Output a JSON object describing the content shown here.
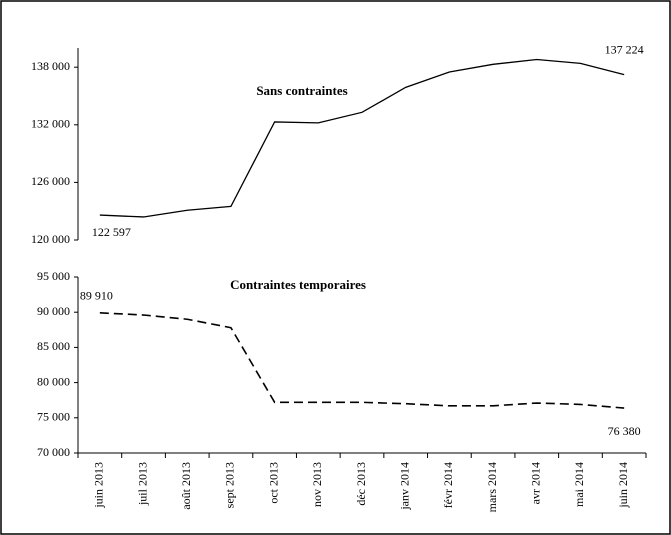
{
  "chart_data": [
    {
      "type": "line",
      "series": [
        {
          "name": "Sans contraintes",
          "color": "#000000",
          "style": "solid",
          "values": [
            122597,
            122400,
            123100,
            123500,
            132300,
            132200,
            133300,
            135900,
            137500,
            138300,
            138800,
            138400,
            137224
          ],
          "value_labels": [
            "122 597",
            null,
            null,
            null,
            null,
            null,
            null,
            null,
            null,
            null,
            null,
            null,
            "137 224"
          ]
        }
      ],
      "ylim": [
        120000,
        140000
      ],
      "yticks": [
        {
          "value": 120000,
          "label": "120 000"
        },
        {
          "value": 126000,
          "label": "126 000"
        },
        {
          "value": 132000,
          "label": "132 000"
        },
        {
          "value": 138000,
          "label": "138 000"
        }
      ]
    },
    {
      "type": "line",
      "categories": [
        "juin 2013",
        "juil 2013",
        "août 2013",
        "sept 2013",
        "oct 2013",
        "nov 2013",
        "déc 2013",
        "janv 2014",
        "févr 2014",
        "mars 2014",
        "avr 2014",
        "mai 2014",
        "juin 2014"
      ],
      "series": [
        {
          "name": "Contraintes temporaires",
          "color": "#000000",
          "style": "dashed",
          "values": [
            89910,
            89600,
            89000,
            87800,
            77200,
            77200,
            77200,
            77000,
            76700,
            76700,
            77100,
            76900,
            76380
          ],
          "value_labels": [
            "89 910",
            null,
            null,
            null,
            null,
            null,
            null,
            null,
            null,
            null,
            null,
            null,
            "76 380"
          ]
        }
      ],
      "ylim": [
        70000,
        95000
      ],
      "yticks": [
        {
          "value": 70000,
          "label": "70 000"
        },
        {
          "value": 75000,
          "label": "75 000"
        },
        {
          "value": 80000,
          "label": "80 000"
        },
        {
          "value": 85000,
          "label": "85 000"
        },
        {
          "value": 90000,
          "label": "90 000"
        },
        {
          "value": 95000,
          "label": "95 000"
        }
      ]
    }
  ]
}
